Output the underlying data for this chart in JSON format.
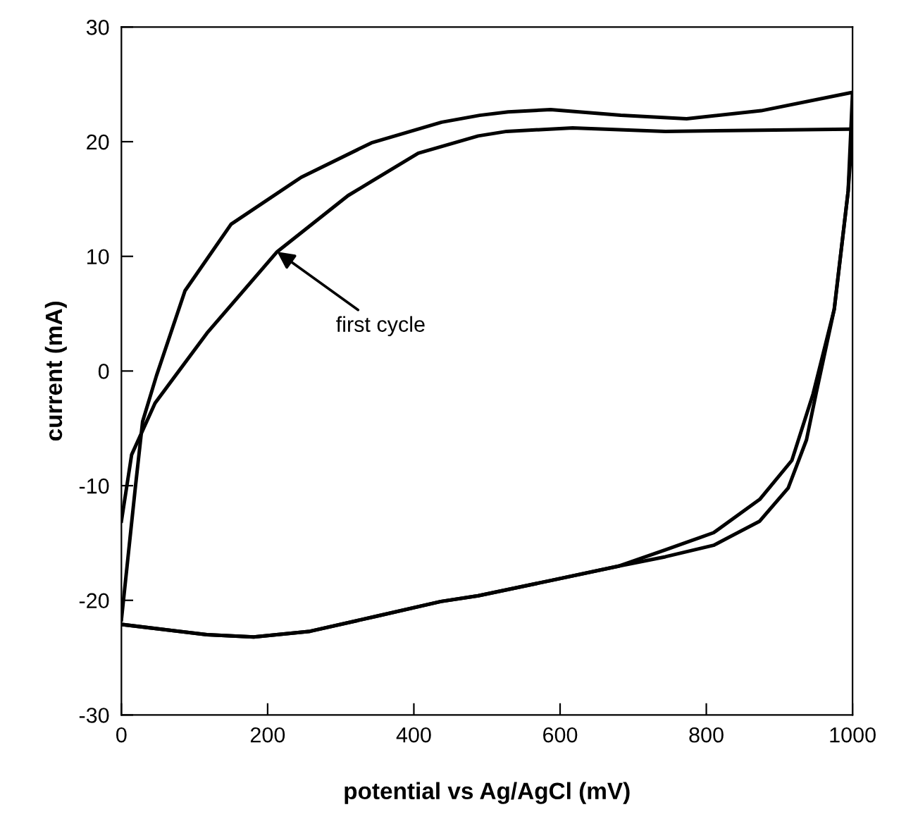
{
  "chart_data": {
    "type": "line",
    "xlabel": "potential vs Ag/AgCl (mV)",
    "ylabel": "current (mA)",
    "xlim": [
      0,
      1000
    ],
    "ylim": [
      -30,
      30
    ],
    "xticks": [
      0,
      200,
      400,
      600,
      800,
      1000
    ],
    "yticks": [
      -30,
      -20,
      -10,
      0,
      10,
      20,
      30
    ],
    "grid": false,
    "legend": false,
    "marker": "none",
    "line_style": "solid",
    "series": [
      {
        "color": "#000000",
        "x": [
          0,
          19,
          29,
          48,
          87,
          150,
          246,
          342,
          438,
          490,
          529,
          587,
          683,
          773,
          875,
          1000,
          994,
          975,
          950,
          937,
          912,
          873,
          810,
          744,
          681,
          585,
          488,
          437,
          348,
          258,
          181,
          117,
          0
        ],
        "values": [
          -21.7,
          -10.2,
          -4.4,
          -0.4,
          7.0,
          12.8,
          16.9,
          19.9,
          21.7,
          22.3,
          22.6,
          22.8,
          22.3,
          22.0,
          22.7,
          24.3,
          15.7,
          5.4,
          -2.0,
          -6.0,
          -10.2,
          -13.1,
          -15.2,
          -16.2,
          -17.0,
          -18.3,
          -19.6,
          -20.1,
          -21.4,
          -22.7,
          -23.2,
          -23.0,
          -22.1
        ]
      },
      {
        "color": "#000000",
        "x": [
          0,
          14,
          46,
          117,
          213,
          310,
          406,
          488,
          527,
          617,
          744,
          995,
          1000,
          994,
          975,
          946,
          917,
          873,
          810,
          744,
          681,
          585,
          488,
          437,
          348,
          258,
          181,
          117,
          0
        ],
        "values": [
          -13.1,
          -7.3,
          -2.8,
          3.3,
          10.4,
          15.3,
          19.0,
          20.5,
          20.9,
          21.2,
          20.9,
          21.1,
          21.1,
          15.7,
          5.4,
          -2.0,
          -7.8,
          -11.2,
          -14.1,
          -15.6,
          -17.0,
          -18.3,
          -19.6,
          -20.1,
          -21.4,
          -22.7,
          -23.2,
          -23.0,
          -22.1
        ]
      }
    ],
    "annotations": [
      {
        "text": "first cycle",
        "x": 213,
        "y": 10.4
      }
    ]
  }
}
